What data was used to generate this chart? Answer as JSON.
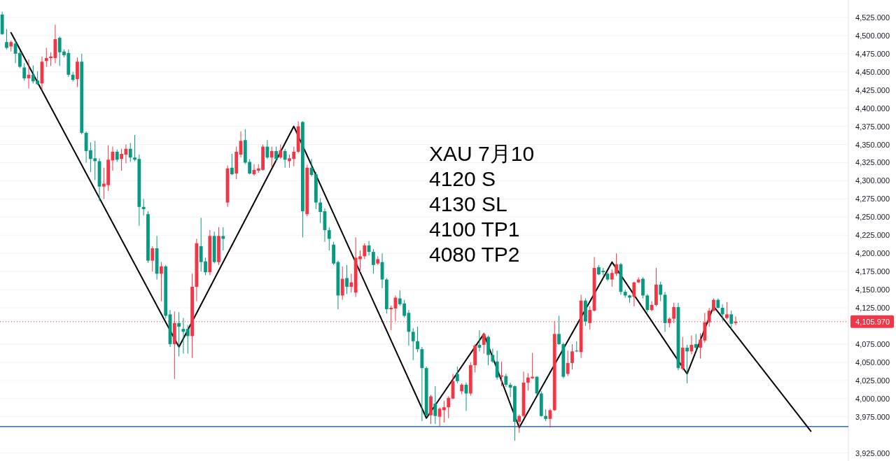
{
  "chart_data": {
    "type": "candlestick",
    "categories": [
      null,
      null,
      null,
      null,
      null,
      null,
      null,
      null,
      null,
      null,
      null,
      null,
      null,
      null,
      null,
      null,
      null,
      null,
      null,
      null,
      null,
      null,
      null,
      null,
      null,
      null,
      null,
      null,
      null,
      null,
      null,
      null,
      null,
      null,
      null,
      null,
      null,
      null,
      null,
      null,
      null,
      null,
      null,
      null,
      null,
      null,
      null,
      null,
      null,
      null,
      null,
      null,
      null,
      null,
      null,
      null,
      null,
      null,
      null,
      null,
      null,
      null,
      null,
      null,
      null,
      null,
      null,
      null,
      null,
      null,
      null,
      null,
      null,
      null,
      null,
      null,
      null,
      null,
      null,
      null,
      null,
      null,
      null,
      null,
      null,
      null,
      null,
      null,
      null,
      null,
      null,
      null,
      null,
      null,
      null,
      null,
      null,
      null,
      null,
      null,
      null,
      null,
      null,
      null,
      null,
      null,
      null,
      null,
      null,
      null,
      null,
      null,
      null,
      null,
      null,
      null,
      null,
      null,
      null,
      null,
      null,
      null,
      null,
      null,
      null,
      null,
      null,
      null,
      null,
      null,
      null,
      null,
      null,
      null,
      null,
      null,
      null,
      null,
      null,
      null,
      null,
      null,
      null,
      null,
      null,
      null,
      null,
      null,
      null,
      null,
      null,
      null,
      null,
      null,
      null,
      null,
      null,
      null,
      null,
      null,
      null,
      null,
      null,
      null,
      null,
      null,
      null,
      null,
      null,
      null,
      null,
      null,
      null,
      null,
      null,
      null,
      null,
      null,
      null,
      null,
      null,
      null,
      null,
      null,
      null,
      null,
      null,
      null,
      null,
      null,
      null,
      null
    ],
    "ohlc": [
      [
        4529,
        4533,
        4501,
        4502
      ],
      [
        4491,
        4509,
        4481,
        4483
      ],
      [
        4485,
        4493,
        4478,
        4491
      ],
      [
        4489,
        4495,
        4462,
        4475
      ],
      [
        4476,
        4479,
        4455,
        4457
      ],
      [
        4456,
        4462,
        4438,
        4441
      ],
      [
        4441,
        4467,
        4427,
        4446
      ],
      [
        4446,
        4459,
        4434,
        4437
      ],
      [
        4438,
        4451,
        4432,
        4433
      ],
      [
        4434,
        4471,
        4425,
        4464
      ],
      [
        4465,
        4483,
        4457,
        4469
      ],
      [
        4469,
        4477,
        4458,
        4471
      ],
      [
        4469,
        4515,
        4462,
        4495
      ],
      [
        4497,
        4499,
        4458,
        4477
      ],
      [
        4478,
        4481,
        4470,
        4473
      ],
      [
        4476,
        4481,
        4443,
        4446
      ],
      [
        4446,
        4450,
        4437,
        4439
      ],
      [
        4440,
        4470,
        4429,
        4464
      ],
      [
        4464,
        4475,
        4364,
        4366
      ],
      [
        4366,
        4368,
        4325,
        4341
      ],
      [
        4342,
        4353,
        4312,
        4330
      ],
      [
        4331,
        4355,
        4301,
        4327
      ],
      [
        4327,
        4331,
        4272,
        4292
      ],
      [
        4292,
        4318,
        4275,
        4296
      ],
      [
        4294,
        4349,
        4286,
        4329
      ],
      [
        4328,
        4347,
        4314,
        4340
      ],
      [
        4340,
        4343,
        4326,
        4329
      ],
      [
        4330,
        4344,
        4314,
        4337
      ],
      [
        4336,
        4350,
        4324,
        4344
      ],
      [
        4344,
        4352,
        4326,
        4332
      ],
      [
        4332,
        4363,
        4327,
        4329
      ],
      [
        4330,
        4336,
        4238,
        4264
      ],
      [
        4264,
        4275,
        4252,
        4261
      ],
      [
        4254,
        4258,
        4187,
        4190
      ],
      [
        4190,
        4210,
        4175,
        4207
      ],
      [
        4207,
        4224,
        4164,
        4172
      ],
      [
        4172,
        4188,
        4134,
        4182
      ],
      [
        4182,
        4184,
        4110,
        4114
      ],
      [
        4116,
        4122,
        4071,
        4075
      ],
      [
        4075,
        4120,
        4027,
        4104
      ],
      [
        4104,
        4119,
        4058,
        4099
      ],
      [
        4096,
        4111,
        4062,
        4092
      ],
      [
        4096,
        4101,
        4062,
        4086
      ],
      [
        4086,
        4172,
        4056,
        4154
      ],
      [
        4154,
        4220,
        4134,
        4214
      ],
      [
        4210,
        4249,
        4175,
        4188
      ],
      [
        4189,
        4194,
        4170,
        4174
      ],
      [
        4174,
        4232,
        4170,
        4224
      ],
      [
        4224,
        4230,
        4186,
        4188
      ],
      [
        4188,
        4236,
        4184,
        4224
      ],
      [
        4224,
        4236,
        4204,
        4220
      ],
      [
        4270,
        4321,
        4264,
        4317
      ],
      [
        4318,
        4337,
        4308,
        4309
      ],
      [
        4310,
        4347,
        4302,
        4340
      ],
      [
        4336,
        4368,
        4332,
        4355
      ],
      [
        4356,
        4371,
        4323,
        4325
      ],
      [
        4326,
        4330,
        4309,
        4310
      ],
      [
        4309,
        4323,
        4307,
        4315
      ],
      [
        4314,
        4323,
        4311,
        4317
      ],
      [
        4315,
        4350,
        4314,
        4347
      ],
      [
        4347,
        4356,
        4330,
        4332
      ],
      [
        4332,
        4347,
        4318,
        4341
      ],
      [
        4341,
        4347,
        4327,
        4330
      ],
      [
        4332,
        4350,
        4330,
        4342
      ],
      [
        4341,
        4344,
        4318,
        4329
      ],
      [
        4327,
        4336,
        4318,
        4331
      ],
      [
        4330,
        4347,
        4320,
        4340
      ],
      [
        4340,
        4382,
        4338,
        4375
      ],
      [
        4381,
        4382,
        4222,
        4258
      ],
      [
        4254,
        4322,
        4251,
        4318
      ],
      [
        4318,
        4330,
        4306,
        4308
      ],
      [
        4309,
        4312,
        4261,
        4270
      ],
      [
        4270,
        4276,
        4242,
        4257
      ],
      [
        4258,
        4262,
        4216,
        4232
      ],
      [
        4232,
        4236,
        4204,
        4220
      ],
      [
        4212,
        4216,
        4184,
        4186
      ],
      [
        4188,
        4190,
        4123,
        4142
      ],
      [
        4142,
        4182,
        4136,
        4165
      ],
      [
        4166,
        4184,
        4144,
        4154
      ],
      [
        4154,
        4172,
        4146,
        4160
      ],
      [
        4146,
        4222,
        4140,
        4194
      ],
      [
        4192,
        4204,
        4174,
        4196
      ],
      [
        4196,
        4214,
        4192,
        4211
      ],
      [
        4211,
        4217,
        4197,
        4202
      ],
      [
        4202,
        4206,
        4172,
        4184
      ],
      [
        4186,
        4196,
        4184,
        4192
      ],
      [
        4188,
        4200,
        4152,
        4164
      ],
      [
        4164,
        4166,
        4117,
        4123
      ],
      [
        4123,
        4128,
        4094,
        4125
      ],
      [
        4124,
        4142,
        4107,
        4139
      ],
      [
        4138,
        4149,
        4128,
        4130
      ],
      [
        4131,
        4136,
        4112,
        4114
      ],
      [
        4118,
        4122,
        4073,
        4092
      ],
      [
        4092,
        4097,
        4053,
        4079
      ],
      [
        4079,
        4099,
        4064,
        4068
      ],
      [
        4068,
        4071,
        3969,
        4042
      ],
      [
        4042,
        4044,
        3975,
        3977
      ],
      [
        3977,
        4005,
        3965,
        4003
      ],
      [
        3993,
        4017,
        3965,
        3976
      ],
      [
        3975,
        3988,
        3962,
        3986
      ],
      [
        3984,
        3997,
        3967,
        3988
      ],
      [
        3988,
        4003,
        3973,
        4001
      ],
      [
        4000,
        4034,
        3999,
        4024
      ],
      [
        4034,
        4044,
        4021,
        4024
      ],
      [
        4010,
        4021,
        4006,
        4019
      ],
      [
        4019,
        4022,
        3983,
        4007
      ],
      [
        4007,
        4050,
        4004,
        4046
      ],
      [
        4046,
        4075,
        4036,
        4073
      ],
      [
        4074,
        4094,
        4065,
        4070
      ],
      [
        4074,
        4091,
        4062,
        4089
      ],
      [
        4085,
        4087,
        4046,
        4060
      ],
      [
        4060,
        4069,
        4049,
        4051
      ],
      [
        4051,
        4066,
        4026,
        4029
      ],
      [
        4030,
        4051,
        4017,
        4032
      ],
      [
        4031,
        4034,
        4016,
        4019
      ],
      [
        4019,
        4022,
        4002,
        4015
      ],
      [
        4017,
        4018,
        3942,
        3968
      ],
      [
        3968,
        3978,
        3953,
        3976
      ],
      [
        3976,
        4037,
        3974,
        4022
      ],
      [
        4022,
        4035,
        4011,
        4029
      ],
      [
        4028,
        4063,
        4027,
        4030
      ],
      [
        4030,
        4031,
        4004,
        4007
      ],
      [
        4007,
        4010,
        3975,
        3976
      ],
      [
        3976,
        3985,
        3969,
        3972
      ],
      [
        3972,
        3986,
        3960,
        3984
      ],
      [
        3984,
        4107,
        3983,
        4089
      ],
      [
        4089,
        4114,
        4074,
        4075
      ],
      [
        4075,
        4077,
        4028,
        4030
      ],
      [
        4034,
        4066,
        4031,
        4049
      ],
      [
        4049,
        4075,
        4040,
        4065
      ],
      [
        4066,
        4079,
        4064,
        4065
      ],
      [
        4064,
        4143,
        4056,
        4135
      ],
      [
        4135,
        4138,
        4100,
        4106
      ],
      [
        4104,
        4127,
        4095,
        4122
      ],
      [
        4121,
        4195,
        4120,
        4180
      ],
      [
        4181,
        4184,
        4170,
        4171
      ],
      [
        4176,
        4180,
        4170,
        4174
      ],
      [
        4172,
        4174,
        4162,
        4164
      ],
      [
        4164,
        4178,
        4154,
        4173
      ],
      [
        4172,
        4200,
        4169,
        4185
      ],
      [
        4185,
        4187,
        4143,
        4147
      ],
      [
        4147,
        4150,
        4139,
        4142
      ],
      [
        4142,
        4143,
        4132,
        4139
      ],
      [
        4140,
        4161,
        4127,
        4160
      ],
      [
        4160,
        4167,
        4159,
        4164
      ],
      [
        4165,
        4167,
        4138,
        4142
      ],
      [
        4142,
        4144,
        4119,
        4122
      ],
      [
        4122,
        4134,
        4120,
        4129
      ],
      [
        4129,
        4180,
        4127,
        4157
      ],
      [
        4157,
        4161,
        4134,
        4143
      ],
      [
        4143,
        4147,
        4092,
        4104
      ],
      [
        4104,
        4112,
        4098,
        4110
      ],
      [
        4110,
        4132,
        4104,
        4126
      ],
      [
        4126,
        4132,
        4039,
        4042
      ],
      [
        4041,
        4085,
        4039,
        4070
      ],
      [
        4070,
        4074,
        4021,
        4065
      ],
      [
        4065,
        4087,
        4061,
        4074
      ],
      [
        4075,
        4089,
        4065,
        4070
      ],
      [
        4070,
        4090,
        4055,
        4081
      ],
      [
        4080,
        4118,
        4077,
        4105
      ],
      [
        4105,
        4125,
        4099,
        4121
      ],
      [
        4121,
        4138,
        4120,
        4136
      ],
      [
        4136,
        4138,
        4124,
        4125
      ],
      [
        4125,
        4130,
        4107,
        4116
      ],
      [
        4111,
        4133,
        4109,
        4116
      ],
      [
        4116,
        4121,
        4096,
        4103
      ],
      [
        4104,
        4113,
        4101,
        4106
      ],
      null,
      null,
      null,
      null,
      null,
      null,
      null,
      null,
      null,
      null,
      null,
      null,
      null,
      null,
      null,
      null,
      null,
      null,
      null,
      null,
      null,
      null,
      null,
      null,
      null
    ],
    "colors": [
      "#089981",
      "#089981",
      "#f23645",
      "#089981",
      "#089981",
      "#089981",
      "#f23645",
      "#089981",
      "#089981",
      "#f23645",
      "#f23645",
      "#f23645",
      "#f23645",
      "#089981",
      "#089981",
      "#089981",
      "#089981",
      "#f23645",
      "#089981",
      "#089981",
      "#089981",
      "#089981",
      "#089981",
      "#f23645",
      "#f23645",
      "#f23645",
      "#089981",
      "#f23645",
      "#f23645",
      "#089981",
      "#089981",
      "#089981",
      "#089981",
      "#089981",
      "#f23645",
      "#089981",
      "#f23645",
      "#089981",
      "#089981",
      "#f23645",
      "#089981",
      "#089981",
      "#089981",
      "#f23645",
      "#f23645",
      "#089981",
      "#089981",
      "#f23645",
      "#089981",
      "#f23645",
      "#089981",
      "#f23645",
      "#089981",
      "#f23645",
      "#f23645",
      "#089981",
      "#089981",
      "#f23645",
      "#f23645",
      "#f23645",
      "#089981",
      "#f23645",
      "#089981",
      "#f23645",
      "#089981",
      "#f23645",
      "#f23645",
      "#f23645",
      "#089981",
      "#f23645",
      "#089981",
      "#089981",
      "#089981",
      "#089981",
      "#089981",
      "#089981",
      "#089981",
      "#f23645",
      "#089981",
      "#f23645",
      "#f23645",
      "#f23645",
      "#f23645",
      "#089981",
      "#089981",
      "#f23645",
      "#089981",
      "#089981",
      "#f23645",
      "#f23645",
      "#089981",
      "#089981",
      "#089981",
      "#089981",
      "#089981",
      "#089981",
      "#089981",
      "#f23645",
      "#089981",
      "#f23645",
      "#f23645",
      "#f23645",
      "#f23645",
      "#089981",
      "#f23645",
      "#089981",
      "#f23645",
      "#f23645",
      "#089981",
      "#f23645",
      "#089981",
      "#089981",
      "#089981",
      "#f23645",
      "#089981",
      "#089981",
      "#089981",
      "#f23645",
      "#f23645",
      "#f23645",
      "#f23645",
      "#089981",
      "#089981",
      "#089981",
      "#f23645",
      "#f23645",
      "#089981",
      "#089981",
      "#f23645",
      "#f23645",
      "#089981",
      "#f23645",
      "#089981",
      "#f23645",
      "#f23645",
      "#089981",
      "#089981",
      "#089981",
      "#f23645",
      "#f23645",
      "#089981",
      "#089981",
      "#089981",
      "#f23645",
      "#f23645",
      "#089981",
      "#089981",
      "#f23645",
      "#f23645",
      "#089981",
      "#089981",
      "#f23645",
      "#f23645",
      "#089981",
      "#f23645",
      "#089981",
      "#f23645",
      "#089981",
      "#f23645",
      "#f23645",
      "#f23645",
      "#f23645",
      "#089981",
      "#089981",
      "#f23645",
      "#089981",
      "#f23645",
      null,
      null,
      null,
      null,
      null,
      null,
      null,
      null,
      null,
      null,
      null,
      null,
      null,
      null,
      null,
      null,
      null,
      null,
      null,
      null,
      null,
      null,
      null,
      null,
      null
    ],
    "series": [
      {
        "type": "line",
        "color": "#000000",
        "values": [
          null,
          null,
          4504,
          null,
          null,
          null,
          null,
          null,
          null,
          null,
          null,
          null,
          null,
          null,
          null,
          null,
          null,
          null,
          null,
          null,
          null,
          null,
          null,
          null,
          null,
          null,
          null,
          null,
          null,
          null,
          null,
          null,
          null,
          null,
          null,
          null,
          null,
          null,
          null,
          null,
          4071,
          null,
          null,
          null,
          null,
          null,
          null,
          null,
          null,
          null,
          null,
          null,
          null,
          null,
          null,
          null,
          null,
          null,
          null,
          null,
          null,
          null,
          null,
          null,
          null,
          null,
          4375,
          null,
          null,
          null,
          null,
          null,
          null,
          null,
          null,
          null,
          null,
          null,
          null,
          null,
          null,
          null,
          null,
          null,
          null,
          null,
          null,
          null,
          null,
          null,
          null,
          null,
          null,
          null,
          null,
          null,
          3973,
          null,
          null,
          null,
          null,
          null,
          null,
          null,
          null,
          null,
          null,
          null,
          null,
          4089,
          null,
          null,
          null,
          null,
          null,
          null,
          null,
          3960,
          null,
          null,
          null,
          null,
          null,
          null,
          null,
          null,
          null,
          null,
          null,
          null,
          null,
          null,
          null,
          null,
          null,
          null,
          null,
          null,
          4188,
          null,
          null,
          null,
          null,
          null,
          null,
          null,
          null,
          null,
          null,
          null,
          null,
          null,
          null,
          null,
          null,
          4034,
          null,
          null,
          null,
          null,
          null,
          4127,
          null,
          null,
          null,
          null,
          null,
          null,
          null,
          null,
          null,
          null,
          null,
          null,
          null,
          null,
          null,
          null,
          null,
          null,
          null,
          null,
          null,
          3955,
          null,
          null,
          null,
          null,
          null,
          null,
          null,
          null
        ]
      }
    ],
    "ylim": [
      3914,
      4549
    ],
    "yticks": [
      {
        "value": 3925,
        "label": "3,925.000"
      },
      {
        "value": 3975,
        "label": "3,975.000"
      },
      {
        "value": 4000,
        "label": "4,000.000"
      },
      {
        "value": 4025,
        "label": "4,025.000"
      },
      {
        "value": 4050,
        "label": "4,050.000"
      },
      {
        "value": 4075,
        "label": "4,075.000"
      },
      {
        "value": 4125,
        "label": "4,125.000"
      },
      {
        "value": 4150,
        "label": "4,150.000"
      },
      {
        "value": 4175,
        "label": "4,175.000"
      },
      {
        "value": 4200,
        "label": "4,200.000"
      },
      {
        "value": 4225,
        "label": "4,225.000"
      },
      {
        "value": 4250,
        "label": "4,250.000"
      },
      {
        "value": 4275,
        "label": "4,275.000"
      },
      {
        "value": 4300,
        "label": "4,300.000"
      },
      {
        "value": 4325,
        "label": "4,325.000"
      },
      {
        "value": 4350,
        "label": "4,350.000"
      },
      {
        "value": 4375,
        "label": "4,375.000"
      },
      {
        "value": 4400,
        "label": "4,400.000"
      },
      {
        "value": 4425,
        "label": "4,425.000"
      },
      {
        "value": 4450,
        "label": "4,450.000"
      },
      {
        "value": 4475,
        "label": "4,475.000"
      },
      {
        "value": 4500,
        "label": "4,500.000"
      },
      {
        "value": 4525,
        "label": "4,525.000"
      }
    ],
    "ref_lines": [
      {
        "axis": "y",
        "value": 4105.97,
        "label": "4,105.970",
        "color": "#f23645",
        "line_style": "dotted"
      },
      {
        "axis": "y",
        "value": 3961.5,
        "color": "#2962ff",
        "line_style": "solid"
      }
    ],
    "annotations": [
      "XAU 7月10",
      "4120 S",
      "4130 SL",
      "4100 TP1",
      "4080 TP2"
    ],
    "grid": "y",
    "tick_labels": "y"
  }
}
